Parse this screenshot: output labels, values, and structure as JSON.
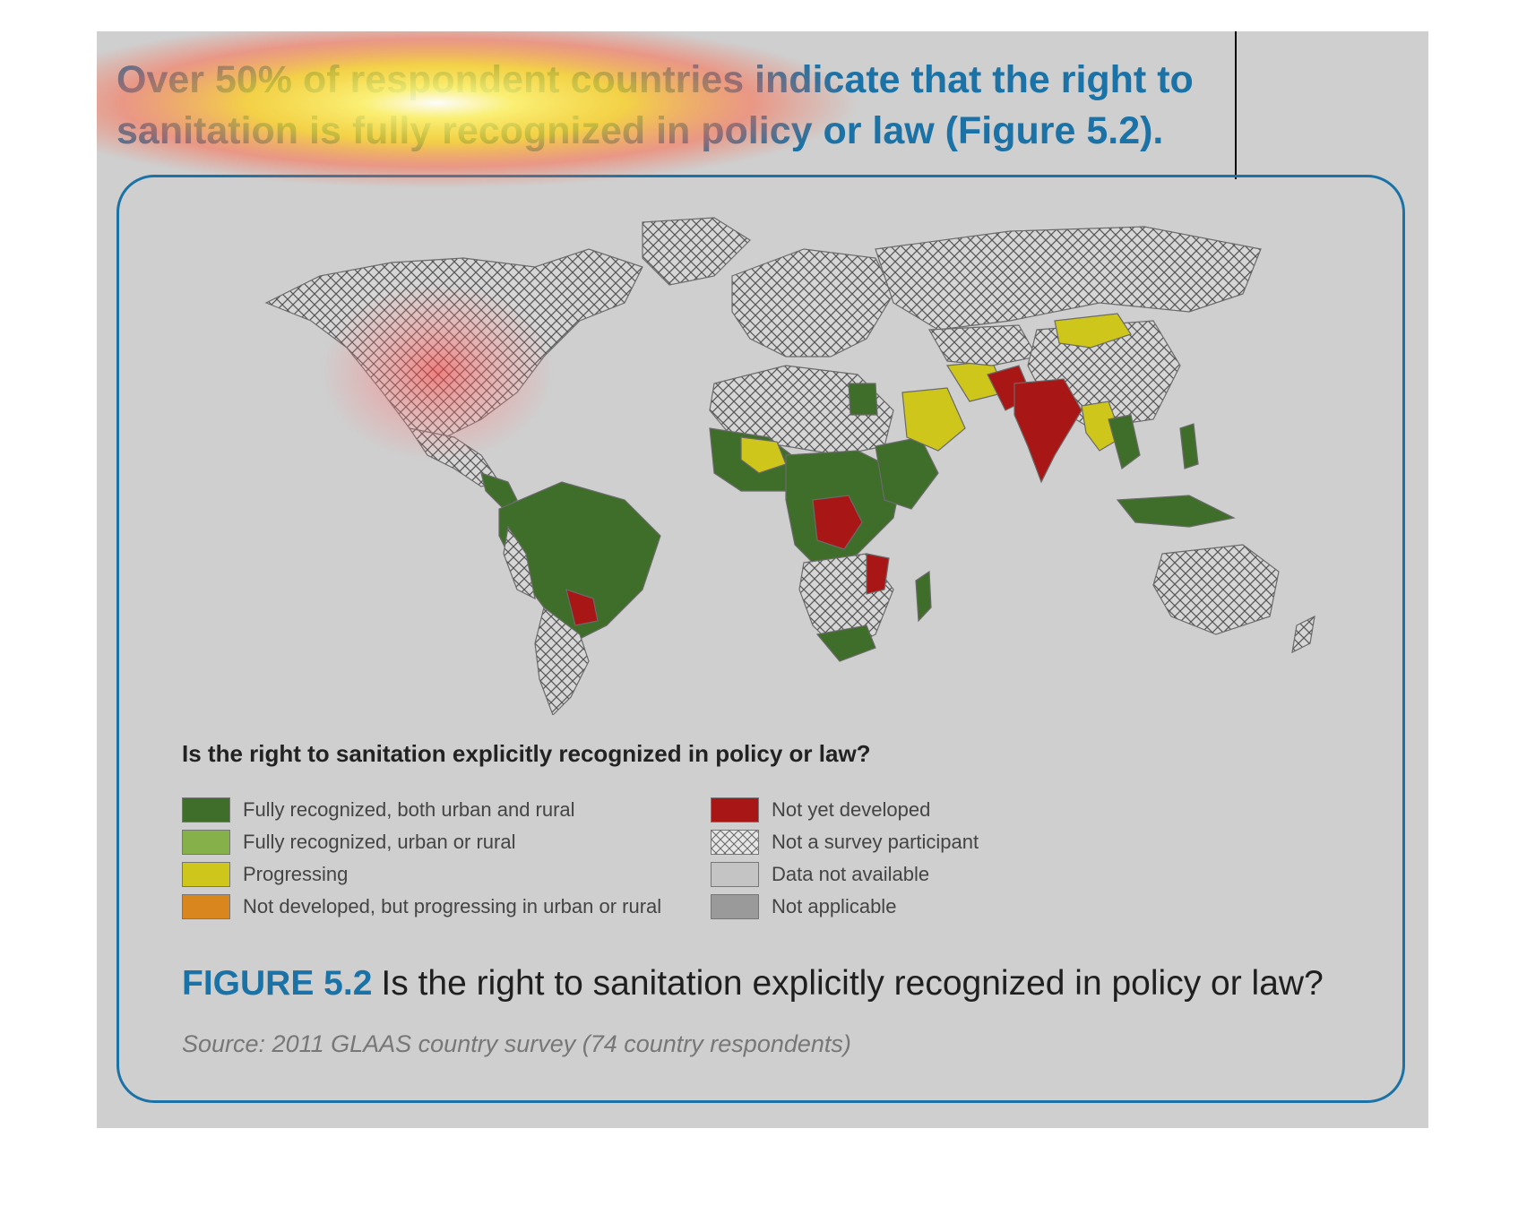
{
  "heading": {
    "line1": "Over 50% of respondent countries indicate that the right to",
    "line2": "sanitation is fully recognized in policy or law (Figure 5.2)."
  },
  "map": {
    "legend_title": "Is the right to sanitation explicitly recognized in policy or law?",
    "legend_left": [
      {
        "label": "Fully recognized, both urban and rural",
        "color": "#3f6e2a"
      },
      {
        "label": "Fully recognized, urban or rural",
        "color": "#86b04a"
      },
      {
        "label": "Progressing",
        "color": "#cfc61c"
      },
      {
        "label": "Not developed, but progressing in urban or rural",
        "color": "#d9861f"
      }
    ],
    "legend_right": [
      {
        "label": "Not yet developed",
        "color": "#a81616"
      },
      {
        "label": "Not a survey participant",
        "color": "hatch"
      },
      {
        "label": "Data not available",
        "color": "#c4c4c4"
      },
      {
        "label": "Not applicable",
        "color": "#9a9a9a"
      }
    ]
  },
  "caption": {
    "figure_number": "FIGURE 5.2",
    "text": "Is the right to sanitation explicitly recognized in policy or law?"
  },
  "source": "Source: 2011 GLAAS country survey (74 country respondents)"
}
